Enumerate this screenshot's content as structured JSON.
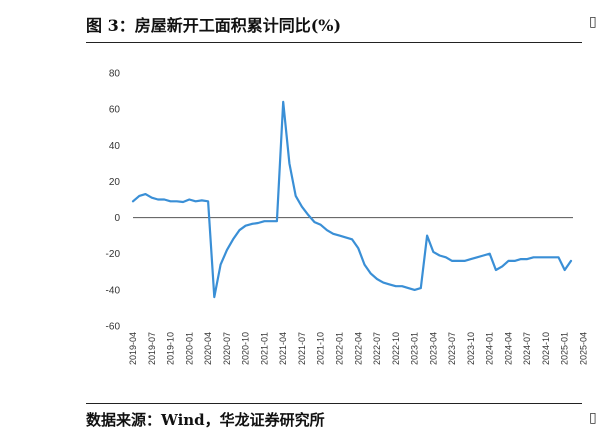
{
  "title": "图 3：房屋新开工面积累计同比(%)",
  "source": "数据来源：Wind，华龙证券研究所",
  "chart_data": {
    "type": "line",
    "title": "房屋新开工面积累计同比(%)",
    "ylim": [
      -60,
      80
    ],
    "yticks": [
      -60,
      -40,
      -20,
      0,
      20,
      40,
      60,
      80
    ],
    "xticks": [
      "2019-04",
      "2019-07",
      "2019-10",
      "2020-01",
      "2020-04",
      "2020-07",
      "2020-10",
      "2021-01",
      "2021-04",
      "2021-07",
      "2021-10",
      "2022-01",
      "2022-04",
      "2022-07",
      "2022-10",
      "2023-01",
      "2023-04",
      "2023-07",
      "2023-10",
      "2024-01",
      "2024-04",
      "2024-07",
      "2024-10",
      "2025-01",
      "2025-04"
    ],
    "line_color": "#3a8fd6",
    "grid": false,
    "series": [
      {
        "values": [
          9,
          12,
          13,
          11,
          10,
          10,
          9,
          9,
          8.6,
          10,
          9,
          9.5,
          9,
          -44,
          -26,
          -18,
          -12,
          -7,
          -4.5,
          -3.5,
          -3,
          -2,
          -2,
          -2,
          64,
          30,
          12,
          6,
          1.5,
          -2.5,
          -4,
          -7,
          -9,
          -10,
          -11,
          -12,
          -17,
          -26,
          -31,
          -34,
          -36,
          -37,
          -38,
          -38,
          -39,
          -40,
          -39,
          -10,
          -19,
          -21,
          -22,
          -24,
          -24,
          -24,
          -23,
          -22,
          -21,
          -20,
          -29,
          -27,
          -24,
          -24,
          -23,
          -23,
          -22,
          -22,
          -22,
          -22,
          -22,
          -29,
          -24
        ]
      }
    ]
  }
}
